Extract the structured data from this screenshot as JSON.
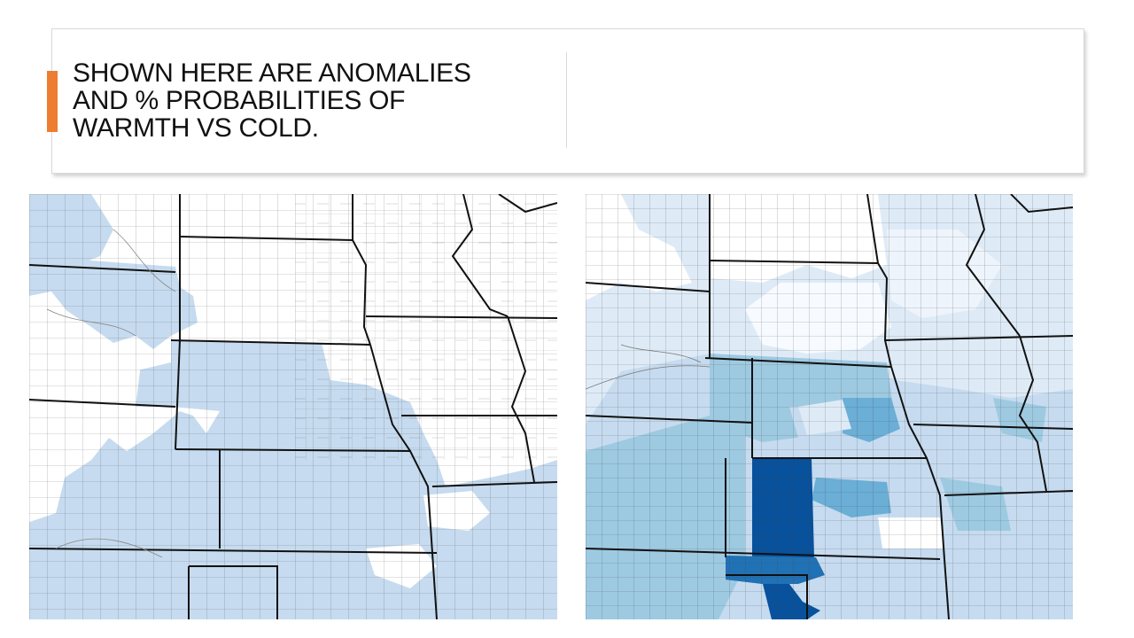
{
  "slide": {
    "title_lines": [
      "SHOWN HERE ARE ANOMALIES",
      "AND % PROBABILITIES OF",
      "WARMTH VS COLD."
    ]
  },
  "colors": {
    "accent": "#ed7d31",
    "light_blue": "#c6dbef",
    "pale_blue": "#deebf7",
    "mid_blue": "#9ecae1",
    "medium_blue": "#6baed6",
    "deep_blue": "#2171b5",
    "dark_blue": "#08519c",
    "county_line": "#333333",
    "state_line": "#111111"
  },
  "maps": [
    {
      "name": "anomaly-map"
    },
    {
      "name": "probability-map"
    }
  ]
}
